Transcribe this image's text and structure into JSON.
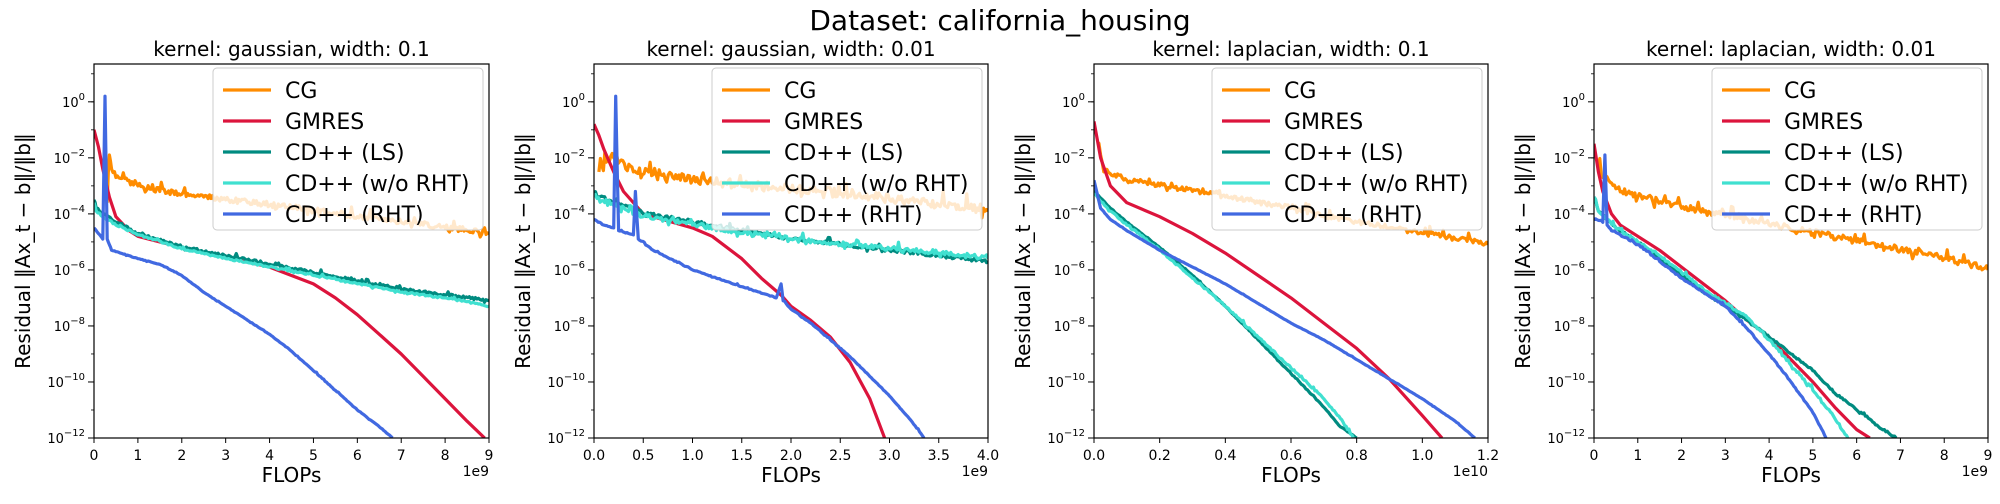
{
  "figure_title": "Dataset: california_housing",
  "colors": {
    "CG": "#ff8c00",
    "GMRES": "#dc143c",
    "CD++ (LS)": "#008b80",
    "CD++ (w/o RHT)": "#40e0d0",
    "CD++ (RHT)": "#4169e1"
  },
  "chart_data": [
    {
      "type": "line",
      "title": "kernel: gaussian, width: 0.1",
      "xlabel": "FLOPs",
      "ylabel": "Residual ‖Ax_t − b‖/‖b‖",
      "x_exponent_label": "1e9",
      "x_scale_factor": 1000000000,
      "xlim": [
        0,
        9
      ],
      "xticks": [
        0,
        1,
        2,
        3,
        4,
        5,
        6,
        7,
        8,
        9
      ],
      "yscale": "log",
      "ylim_log10": [
        -12,
        1.35
      ],
      "yticks_log10": [
        -12,
        -10,
        -8,
        -6,
        -4,
        -2,
        0
      ],
      "legend_position": "upper right",
      "series": [
        {
          "name": "CG",
          "x": [
            0.3,
            0.35,
            0.4,
            0.5,
            0.8,
            1.0,
            1.5,
            2.0,
            2.5,
            3.0,
            3.5,
            4.0,
            4.5,
            5.0,
            5.5,
            6.0,
            6.5,
            7.0,
            7.5,
            8.0,
            8.5,
            9.0
          ],
          "log10_y": [
            -3.6,
            -1.9,
            -2.4,
            -2.7,
            -2.8,
            -3.0,
            -3.2,
            -3.3,
            -3.4,
            -3.5,
            -3.6,
            -3.7,
            -3.8,
            -3.9,
            -4.0,
            -4.1,
            -4.2,
            -4.3,
            -4.4,
            -4.5,
            -4.6,
            -4.7
          ],
          "noise": 0.35
        },
        {
          "name": "GMRES",
          "x": [
            0.0,
            0.1,
            0.2,
            0.35,
            0.5,
            0.8,
            1.0,
            1.5,
            2.0,
            3.0,
            4.0,
            5.0,
            5.5,
            6.0,
            6.5,
            7.0,
            7.5,
            8.0,
            8.5,
            8.9
          ],
          "log10_y": [
            -1.0,
            -1.6,
            -2.4,
            -3.4,
            -4.1,
            -4.6,
            -4.8,
            -5.0,
            -5.2,
            -5.55,
            -5.9,
            -6.5,
            -7.0,
            -7.6,
            -8.3,
            -9.0,
            -9.8,
            -10.6,
            -11.4,
            -12.0
          ],
          "noise": 0.0
        },
        {
          "name": "CD++ (LS)",
          "x": [
            0.0,
            0.05,
            0.2,
            0.5,
            1.0,
            2.0,
            3.0,
            4.0,
            5.0,
            6.0,
            7.0,
            8.0,
            9.0
          ],
          "log10_y": [
            -3.5,
            -3.8,
            -4.0,
            -4.3,
            -4.7,
            -5.2,
            -5.5,
            -5.8,
            -6.1,
            -6.4,
            -6.7,
            -6.9,
            -7.1
          ],
          "noise": 0.15
        },
        {
          "name": "CD++ (w/o RHT)",
          "x": [
            0.0,
            0.05,
            0.2,
            0.5,
            1.0,
            2.0,
            3.0,
            4.0,
            5.0,
            6.0,
            7.0,
            8.0,
            9.0
          ],
          "log10_y": [
            -3.6,
            -3.9,
            -4.1,
            -4.4,
            -4.75,
            -5.25,
            -5.6,
            -5.9,
            -6.2,
            -6.5,
            -6.8,
            -7.0,
            -7.3
          ],
          "noise": 0.1
        },
        {
          "name": "CD++ (RHT)",
          "x": [
            0.0,
            0.2,
            0.25,
            0.3,
            0.35,
            0.4,
            0.6,
            1.0,
            1.5,
            2.0,
            2.5,
            3.0,
            3.5,
            4.0,
            4.5,
            5.0,
            5.5,
            6.0,
            6.5,
            6.8
          ],
          "log10_y": [
            -4.5,
            -4.9,
            0.2,
            -4.9,
            -5.1,
            -5.3,
            -5.4,
            -5.6,
            -5.8,
            -6.2,
            -6.8,
            -7.3,
            -7.8,
            -8.3,
            -8.9,
            -9.6,
            -10.3,
            -11.0,
            -11.6,
            -12.0
          ],
          "noise": 0.04
        }
      ]
    },
    {
      "type": "line",
      "title": "kernel: gaussian, width: 0.01",
      "xlabel": "FLOPs",
      "ylabel": "Residual ‖Ax_t − b‖/‖b‖",
      "x_exponent_label": "1e9",
      "x_scale_factor": 1000000000,
      "xlim": [
        0,
        4
      ],
      "xticks": [
        0.0,
        0.5,
        1.0,
        1.5,
        2.0,
        2.5,
        3.0,
        3.5,
        4.0
      ],
      "yscale": "log",
      "ylim_log10": [
        -12,
        1.35
      ],
      "yticks_log10": [
        -12,
        -10,
        -8,
        -6,
        -4,
        -2,
        0
      ],
      "legend_position": "upper right",
      "series": [
        {
          "name": "CG",
          "x": [
            0.05,
            0.2,
            0.4,
            0.6,
            0.8,
            1.0,
            1.2,
            1.5,
            1.8,
            2.0,
            2.3,
            2.5,
            2.8,
            3.0,
            3.3,
            3.5,
            3.8,
            4.0
          ],
          "log10_y": [
            -2.5,
            -2.0,
            -2.5,
            -2.6,
            -2.7,
            -2.8,
            -2.9,
            -3.0,
            -3.1,
            -3.15,
            -3.2,
            -3.3,
            -3.4,
            -3.5,
            -3.6,
            -3.7,
            -3.8,
            -3.9
          ],
          "noise": 0.55
        },
        {
          "name": "GMRES",
          "x": [
            0.0,
            0.05,
            0.1,
            0.2,
            0.3,
            0.5,
            0.8,
            1.0,
            1.2,
            1.5,
            1.7,
            1.9,
            2.0,
            2.2,
            2.4,
            2.6,
            2.8,
            2.95
          ],
          "log10_y": [
            -0.8,
            -1.2,
            -1.7,
            -2.5,
            -3.2,
            -4.0,
            -4.3,
            -4.5,
            -4.8,
            -5.6,
            -6.3,
            -6.9,
            -7.3,
            -7.8,
            -8.4,
            -9.3,
            -10.6,
            -12.0
          ],
          "noise": 0.0
        },
        {
          "name": "CD++ (LS)",
          "x": [
            0.0,
            0.2,
            0.5,
            1.0,
            1.5,
            2.0,
            2.5,
            3.0,
            3.5,
            4.0
          ],
          "log10_y": [
            -3.3,
            -3.6,
            -4.0,
            -4.3,
            -4.6,
            -4.9,
            -5.1,
            -5.3,
            -5.5,
            -5.7
          ],
          "noise": 0.22
        },
        {
          "name": "CD++ (w/o RHT)",
          "x": [
            0.0,
            0.2,
            0.5,
            1.0,
            1.5,
            2.0,
            2.5,
            3.0,
            3.5,
            4.0
          ],
          "log10_y": [
            -3.4,
            -3.7,
            -4.1,
            -4.4,
            -4.7,
            -4.9,
            -5.1,
            -5.25,
            -5.4,
            -5.6
          ],
          "noise": 0.28
        },
        {
          "name": "CD++ (RHT)",
          "x": [
            0.0,
            0.1,
            0.2,
            0.22,
            0.25,
            0.35,
            0.4,
            0.42,
            0.45,
            0.6,
            1.0,
            1.5,
            1.85,
            1.9,
            1.92,
            2.0,
            2.2,
            2.4,
            2.6,
            2.8,
            3.0,
            3.2,
            3.35
          ],
          "log10_y": [
            -4.2,
            -4.4,
            -4.5,
            0.2,
            -4.6,
            -4.7,
            -4.75,
            -3.2,
            -4.9,
            -5.3,
            -6.0,
            -6.6,
            -7.0,
            -6.5,
            -7.1,
            -7.4,
            -7.9,
            -8.5,
            -9.1,
            -9.8,
            -10.5,
            -11.3,
            -12.0
          ],
          "noise": 0.05
        }
      ]
    },
    {
      "type": "line",
      "title": "kernel: laplacian, width: 0.1",
      "xlabel": "FLOPs",
      "ylabel": "Residual ‖Ax_t − b‖/‖b‖",
      "x_exponent_label": "1e10",
      "x_scale_factor": 10000000000,
      "xlim": [
        0,
        1.2
      ],
      "xticks": [
        0.0,
        0.2,
        0.4,
        0.6,
        0.8,
        1.0,
        1.2
      ],
      "yscale": "log",
      "ylim_log10": [
        -12,
        1.35
      ],
      "yticks_log10": [
        -12,
        -10,
        -8,
        -6,
        -4,
        -2,
        0
      ],
      "legend_position": "upper right",
      "series": [
        {
          "name": "CG",
          "x": [
            0.01,
            0.03,
            0.1,
            0.2,
            0.3,
            0.4,
            0.5,
            0.6,
            0.7,
            0.8,
            0.9,
            1.0,
            1.1,
            1.2
          ],
          "log10_y": [
            -1.5,
            -2.5,
            -2.8,
            -3.0,
            -3.2,
            -3.4,
            -3.6,
            -3.8,
            -4.1,
            -4.3,
            -4.5,
            -4.7,
            -4.9,
            -5.1
          ],
          "noise": 0.3
        },
        {
          "name": "GMRES",
          "x": [
            0.0,
            0.02,
            0.05,
            0.1,
            0.2,
            0.3,
            0.4,
            0.5,
            0.6,
            0.7,
            0.8,
            0.9,
            1.0,
            1.06
          ],
          "log10_y": [
            -0.7,
            -2.0,
            -3.0,
            -3.6,
            -4.1,
            -4.7,
            -5.4,
            -6.2,
            -7.0,
            -7.9,
            -8.8,
            -9.9,
            -11.2,
            -12.0
          ],
          "noise": 0.0
        },
        {
          "name": "CD++ (LS)",
          "x": [
            0.0,
            0.05,
            0.1,
            0.2,
            0.3,
            0.4,
            0.5,
            0.6,
            0.7,
            0.75,
            0.8
          ],
          "log10_y": [
            -3.2,
            -3.8,
            -4.3,
            -5.2,
            -6.2,
            -7.3,
            -8.5,
            -9.7,
            -10.9,
            -11.6,
            -12.0
          ],
          "noise": 0.05
        },
        {
          "name": "CD++ (w/o RHT)",
          "x": [
            0.0,
            0.05,
            0.1,
            0.2,
            0.3,
            0.4,
            0.5,
            0.6,
            0.7,
            0.75,
            0.79
          ],
          "log10_y": [
            -3.3,
            -3.9,
            -4.4,
            -5.3,
            -6.3,
            -7.3,
            -8.4,
            -9.5,
            -10.6,
            -11.3,
            -12.0
          ],
          "noise": 0.1
        },
        {
          "name": "CD++ (RHT)",
          "x": [
            0.0,
            0.02,
            0.05,
            0.1,
            0.2,
            0.3,
            0.4,
            0.5,
            0.6,
            0.7,
            0.8,
            0.9,
            1.0,
            1.1,
            1.16
          ],
          "log10_y": [
            -2.8,
            -3.8,
            -4.2,
            -4.6,
            -5.3,
            -5.9,
            -6.5,
            -7.2,
            -7.9,
            -8.5,
            -9.2,
            -9.9,
            -10.6,
            -11.4,
            -12.0
          ],
          "noise": 0.02
        }
      ]
    },
    {
      "type": "line",
      "title": "kernel: laplacian, width: 0.01",
      "xlabel": "FLOPs",
      "ylabel": "Residual ‖Ax_t − b‖/‖b‖",
      "x_exponent_label": "1e9",
      "x_scale_factor": 1000000000,
      "xlim": [
        0,
        9
      ],
      "xticks": [
        0,
        1,
        2,
        3,
        4,
        5,
        6,
        7,
        8,
        9
      ],
      "yscale": "log",
      "ylim_log10": [
        -12,
        1.35
      ],
      "yticks_log10": [
        -12,
        -10,
        -8,
        -6,
        -4,
        -2,
        0
      ],
      "legend_position": "upper right",
      "series": [
        {
          "name": "CG",
          "x": [
            0.1,
            0.2,
            0.5,
            1.0,
            2.0,
            3.0,
            4.0,
            5.0,
            6.0,
            7.0,
            8.0,
            9.0
          ],
          "log10_y": [
            -2.3,
            -2.7,
            -3.1,
            -3.4,
            -3.8,
            -4.1,
            -4.4,
            -4.7,
            -5.0,
            -5.3,
            -5.6,
            -6.0
          ],
          "noise": 0.4
        },
        {
          "name": "GMRES",
          "x": [
            0.0,
            0.1,
            0.2,
            0.4,
            0.6,
            1.0,
            1.5,
            2.0,
            2.5,
            3.0,
            3.5,
            4.0,
            4.5,
            5.0,
            5.5,
            6.0,
            6.3
          ],
          "log10_y": [
            -1.5,
            -2.5,
            -3.2,
            -4.0,
            -4.4,
            -4.8,
            -5.3,
            -5.9,
            -6.5,
            -7.1,
            -7.8,
            -8.4,
            -9.2,
            -10.0,
            -10.9,
            -11.7,
            -12.0
          ],
          "noise": 0.0
        },
        {
          "name": "CD++ (LS)",
          "x": [
            0.0,
            0.1,
            0.3,
            0.5,
            1.0,
            1.5,
            2.0,
            2.5,
            3.0,
            3.5,
            4.0,
            4.5,
            5.0,
            5.5,
            6.0,
            6.5,
            6.9
          ],
          "log10_y": [
            -3.4,
            -3.9,
            -4.2,
            -4.5,
            -5.0,
            -5.6,
            -6.2,
            -6.8,
            -7.3,
            -7.8,
            -8.4,
            -9.0,
            -9.6,
            -10.4,
            -11.0,
            -11.6,
            -12.0
          ],
          "noise": 0.1
        },
        {
          "name": "CD++ (w/o RHT)",
          "x": [
            0.0,
            0.1,
            0.3,
            0.5,
            1.0,
            1.5,
            2.0,
            2.5,
            3.0,
            3.5,
            4.0,
            4.5,
            5.0,
            5.5,
            5.8
          ],
          "log10_y": [
            -3.4,
            -3.9,
            -4.2,
            -4.5,
            -5.0,
            -5.5,
            -6.1,
            -6.7,
            -7.2,
            -7.7,
            -8.5,
            -9.4,
            -10.3,
            -11.3,
            -12.0
          ],
          "noise": 0.15
        },
        {
          "name": "CD++ (RHT)",
          "x": [
            0.0,
            0.2,
            0.25,
            0.3,
            0.35,
            0.4,
            1.0,
            1.5,
            2.0,
            2.5,
            3.0,
            3.5,
            4.0,
            4.5,
            5.0,
            5.3
          ],
          "log10_y": [
            -4.2,
            -4.3,
            -1.9,
            -4.4,
            -4.5,
            -4.6,
            -5.1,
            -5.7,
            -6.3,
            -6.8,
            -7.3,
            -8.1,
            -9.0,
            -10.0,
            -11.1,
            -12.0
          ],
          "noise": 0.08
        }
      ]
    }
  ]
}
